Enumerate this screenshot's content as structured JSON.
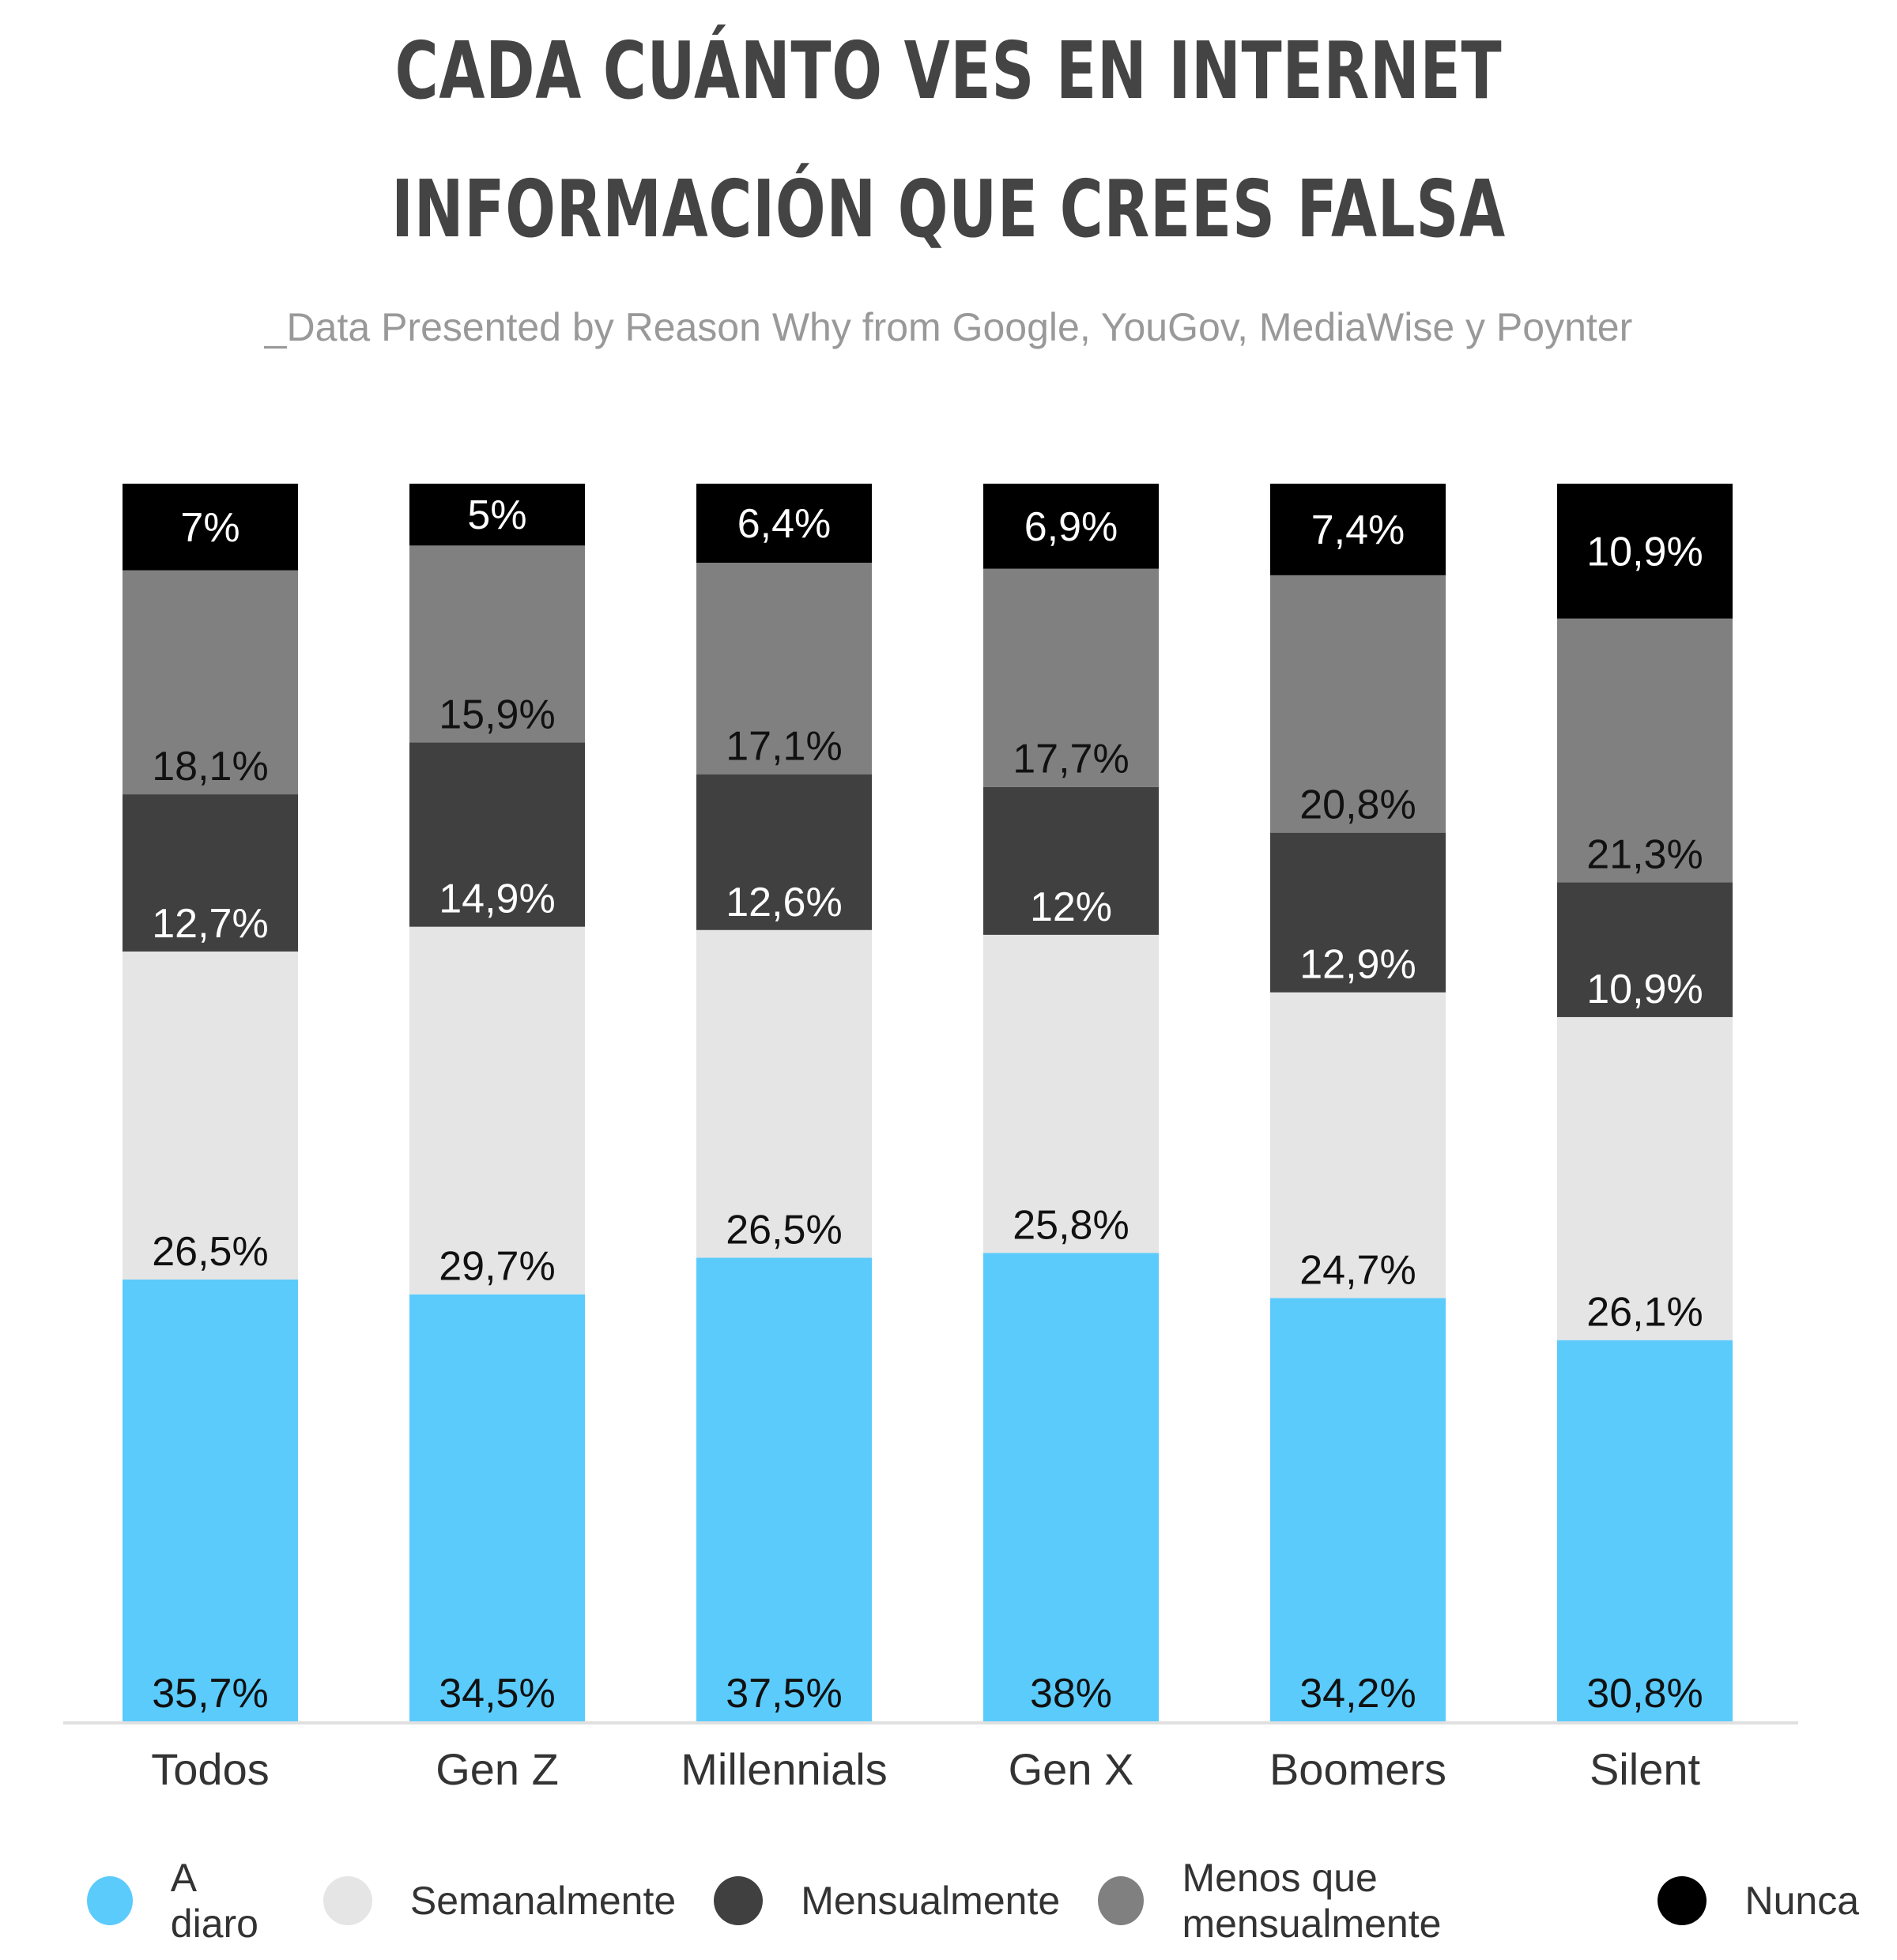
{
  "title_lines": [
    "CADA CUÁNTO VES EN INTERNET",
    "INFORMACIÓN QUE CREES FALSA"
  ],
  "subtitle": "_Data Presented by Reason Why from Google, YouGov, MediaWise y Poynter",
  "chart_data": {
    "type": "bar",
    "stacked": true,
    "title": "CADA CUÁNTO VES EN INTERNET INFORMACIÓN QUE CREES FALSA",
    "subtitle": "_Data Presented by Reason Why from Google, YouGov, MediaWise y Poynter",
    "categories": [
      "Todos",
      "Gen Z",
      "Millennials",
      "Gen X",
      "Boomers",
      "Silent"
    ],
    "ylim": [
      0,
      100
    ],
    "grid": false,
    "legend_position": "bottom",
    "series": [
      {
        "name": "A diaro",
        "color": "#5bcbfc",
        "label_color": "#111111",
        "values": [
          35.7,
          34.5,
          37.5,
          38,
          34.2,
          30.8
        ],
        "labels": [
          "35,7%",
          "34,5%",
          "37,5%",
          "38%",
          "34,2%",
          "30,8%"
        ]
      },
      {
        "name": "Semanalmente",
        "color": "#e5e5e5",
        "label_color": "#111111",
        "values": [
          26.5,
          29.7,
          26.5,
          25.8,
          24.7,
          26.1
        ],
        "labels": [
          "26,5%",
          "29,7%",
          "26,5%",
          "25,8%",
          "24,7%",
          "26,1%"
        ]
      },
      {
        "name": "Mensualmente",
        "color": "#404040",
        "label_color": "#ffffff",
        "values": [
          12.7,
          14.9,
          12.6,
          12,
          12.9,
          10.9
        ],
        "labels": [
          "12,7%",
          "14,9%",
          "12,6%",
          "12%",
          "12,9%",
          "10,9%"
        ]
      },
      {
        "name": "Menos que mensualmente",
        "color": "#808080",
        "label_color": "#111111",
        "values": [
          18.1,
          15.9,
          17.1,
          17.7,
          20.8,
          21.3
        ],
        "labels": [
          "18,1%",
          "15,9%",
          "17,1%",
          "17,7%",
          "20,8%",
          "21,3%"
        ]
      },
      {
        "name": "Nunca",
        "color": "#000000",
        "label_color": "#ffffff",
        "values": [
          7,
          5,
          6.4,
          6.9,
          7.4,
          10.9
        ],
        "labels": [
          "7%",
          "5%",
          "6,4%",
          "6,9%",
          "7,4%",
          "10,9%"
        ]
      }
    ]
  }
}
